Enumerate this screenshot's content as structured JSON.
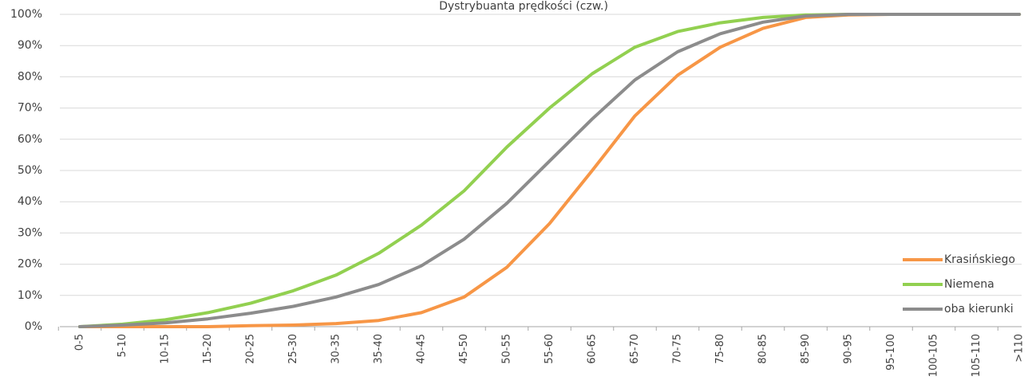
{
  "chart_data": {
    "type": "line",
    "title": "Dystrybuanta prędkości (czw.)",
    "xlabel": "",
    "ylabel": "",
    "ylim": [
      0,
      100
    ],
    "y_ticks": [
      "0%",
      "10%",
      "20%",
      "30%",
      "40%",
      "50%",
      "60%",
      "70%",
      "80%",
      "90%",
      "100%"
    ],
    "categories": [
      "0-5",
      "5-10",
      "10-15",
      "15-20",
      "20-25",
      "25-30",
      "30-35",
      "35-40",
      "40-45",
      "45-50",
      "50-55",
      "55-60",
      "60-65",
      "65-70",
      "70-75",
      "75-80",
      "80-85",
      "85-90",
      "90-95",
      "95-100",
      "100-105",
      "105-110",
      ">110"
    ],
    "series": [
      {
        "name": "Krasińskiego",
        "color": "#f79646",
        "values": [
          0,
          0,
          0,
          0,
          0.3,
          0.5,
          1,
          2,
          4.5,
          9.5,
          19,
          33,
          50,
          67.5,
          80.5,
          89.5,
          95.5,
          99,
          99.8,
          100,
          100,
          100,
          100
        ]
      },
      {
        "name": "Niemena",
        "color": "#92d050",
        "values": [
          0,
          0.8,
          2.2,
          4.5,
          7.5,
          11.5,
          16.5,
          23.5,
          32.5,
          43.5,
          57.5,
          70,
          81,
          89.5,
          94.5,
          97.3,
          99,
          99.8,
          100,
          100,
          100,
          100,
          100
        ]
      },
      {
        "name": "oba kierunki",
        "color": "#8c8c8c",
        "values": [
          0,
          0.5,
          1.2,
          2.5,
          4.3,
          6.5,
          9.5,
          13.5,
          19.5,
          28,
          39.5,
          53,
          66.5,
          79,
          88,
          93.8,
          97.5,
          99.5,
          100,
          100,
          100,
          100,
          100
        ]
      }
    ],
    "grid": true,
    "legend_position": "bottom-right"
  }
}
